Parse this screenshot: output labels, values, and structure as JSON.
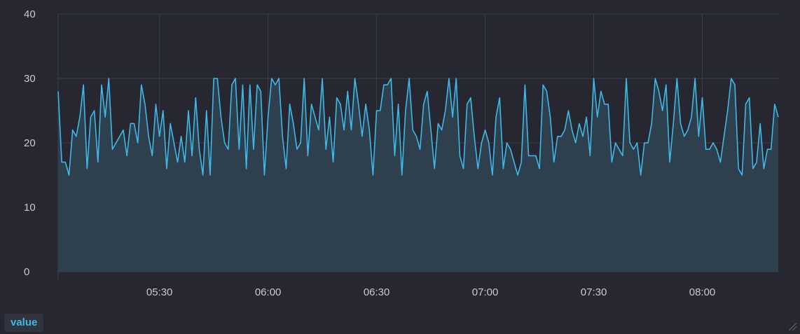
{
  "chart_data": {
    "type": "area",
    "title": "",
    "xlabel": "",
    "ylabel": "",
    "ylim": [
      0,
      40
    ],
    "yticks": [
      "0",
      "10",
      "20",
      "30",
      "40"
    ],
    "x_start": "05:02",
    "x_interval_minutes": 1,
    "xticks": [
      {
        "time": "05:30",
        "label": "05:30"
      },
      {
        "time": "06:00",
        "label": "06:00"
      },
      {
        "time": "06:30",
        "label": "06:30"
      },
      {
        "time": "07:00",
        "label": "07:00"
      },
      {
        "time": "07:30",
        "label": "07:30"
      },
      {
        "time": "08:00",
        "label": "08:00"
      }
    ],
    "grid": true,
    "legend_position": "bottom-left",
    "series": [
      {
        "name": "value",
        "color": "#3fb8e8",
        "fill": "#2f4150",
        "values": [
          28,
          17,
          17,
          15,
          22,
          21,
          24,
          29,
          16,
          24,
          25,
          17,
          29,
          24,
          30,
          19,
          20,
          21,
          22,
          18,
          23,
          23,
          20,
          29,
          26,
          21,
          18,
          26,
          21,
          25,
          16,
          23,
          20,
          17,
          21,
          17,
          25,
          18,
          27,
          19,
          15,
          25,
          15,
          30,
          30,
          24,
          20,
          19,
          29,
          30,
          19,
          29,
          16,
          29,
          19,
          29,
          28,
          15,
          24,
          30,
          29,
          30,
          21,
          16,
          26,
          23,
          19,
          20,
          30,
          18,
          26,
          24,
          22,
          30,
          19,
          24,
          17,
          27,
          26,
          22,
          28,
          22,
          30,
          26,
          21,
          26,
          22,
          15,
          25,
          25,
          29,
          29,
          30,
          18,
          26,
          15,
          25,
          30,
          22,
          21,
          19,
          26,
          28,
          22,
          16,
          23,
          22,
          25,
          30,
          24,
          30,
          18,
          16,
          26,
          27,
          21,
          16,
          20,
          22,
          20,
          15,
          24,
          27,
          16,
          20,
          19,
          17,
          15,
          17,
          29,
          18,
          18,
          18,
          16,
          29,
          28,
          24,
          17,
          21,
          21,
          22,
          25,
          22,
          20,
          23,
          21,
          24,
          18,
          30,
          24,
          28,
          26,
          26,
          17,
          20,
          19,
          18,
          30,
          20,
          19,
          20,
          15,
          20,
          20,
          23,
          30,
          28,
          25,
          29,
          17,
          23,
          30,
          23,
          21,
          22,
          24,
          30,
          21,
          27,
          19,
          19,
          20,
          19,
          17,
          21,
          25,
          30,
          29,
          16,
          15,
          26,
          27,
          16,
          17,
          23,
          16,
          19,
          19,
          26,
          24
        ]
      }
    ]
  },
  "legend": {
    "label": "value"
  },
  "icons": {
    "resize": "resize-handle-icon"
  }
}
